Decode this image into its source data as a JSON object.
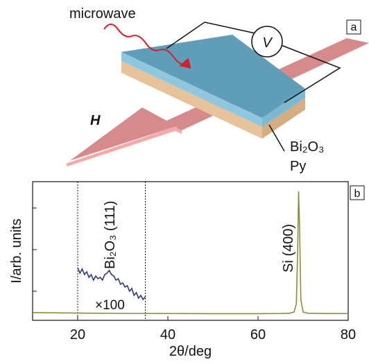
{
  "diagram": {
    "panel_label": "a",
    "microwave": "microwave",
    "voltmeter": "V",
    "field": "H",
    "layer_top": "Bi₂O₃",
    "layer_bottom": "Py"
  },
  "chart_data": {
    "type": "line",
    "panel_label": "b",
    "xlabel": "2θ/deg",
    "ylabel": "I/arb. units",
    "xlim": [
      10,
      80
    ],
    "xticks": [
      20,
      40,
      60,
      80
    ],
    "ylim": [
      0,
      100
    ],
    "vlines": [
      20,
      35
    ],
    "annotations": [
      "Bi₂O₃ (111)",
      "Si (400)",
      "×100"
    ],
    "series": [
      {
        "color": "#8a8d3c",
        "x": [
          10,
          20,
          30,
          40,
          50,
          60,
          65,
          67,
          68,
          68.5,
          68.8,
          69,
          69.2,
          69.5,
          70,
          71,
          75,
          80
        ],
        "values": [
          5.6,
          5.2,
          5,
          4.9,
          4.8,
          4.8,
          4.9,
          5.1,
          6,
          12,
          50,
          93,
          70,
          15,
          6,
          5.1,
          4.9,
          4.9
        ]
      },
      {
        "color": "#2e3470",
        "x": [
          20,
          20.5,
          21,
          21.5,
          22,
          22.5,
          23,
          23.5,
          24,
          24.5,
          25,
          25.5,
          26,
          26.5,
          27,
          27.5,
          28,
          28.5,
          29,
          29.5,
          30,
          30.5,
          31,
          31.5,
          32,
          32.5,
          33,
          33.5,
          34,
          34.5,
          35
        ],
        "values": [
          38,
          34,
          37,
          33,
          35,
          31,
          33,
          29,
          32,
          30,
          31,
          29,
          33,
          34,
          36,
          33,
          32,
          29,
          30,
          26,
          27,
          24,
          25,
          21,
          23,
          18,
          20,
          16,
          18,
          15,
          17
        ]
      }
    ]
  }
}
